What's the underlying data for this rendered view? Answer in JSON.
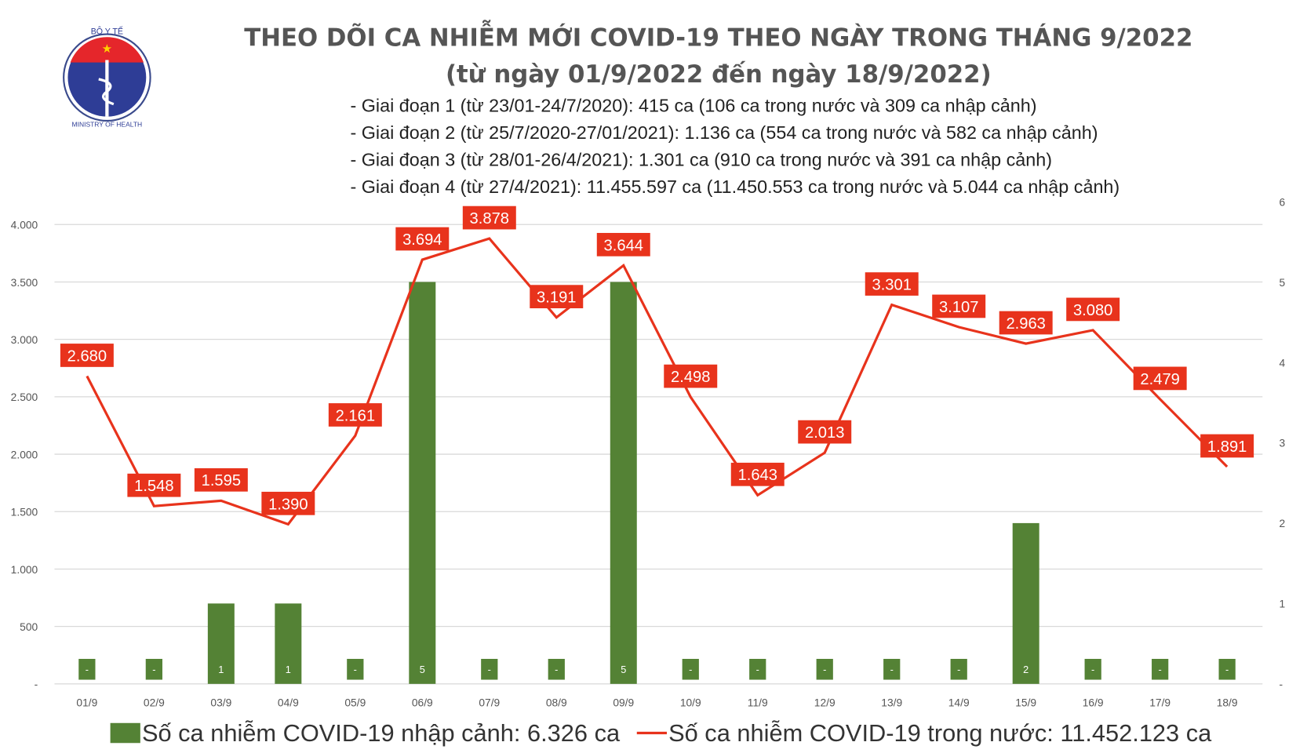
{
  "logo": {
    "top_text": "BỘ Y TẾ",
    "bottom_text": "MINISTRY OF HEALTH"
  },
  "title_line1": "THEO DÕI CA NHIỄM MỚI COVID-19 THEO NGÀY TRONG THÁNG 9/2022",
  "title_line2": "(từ ngày 01/9/2022 đến ngày 18/9/2022)",
  "notes": [
    "- Giai đoạn 1 (từ 23/01-24/7/2020): 415 ca (106 ca trong nước và 309 ca nhập cảnh)",
    "- Giai đoạn 2 (từ 25/7/2020-27/01/2021): 1.136 ca (554 ca trong nước và 582 ca nhập cảnh)",
    "- Giai đoạn 3 (từ 28/01-26/4/2021): 1.301 ca (910 ca trong nước và 391 ca nhập cảnh)",
    "- Giai đoạn 4 (từ 27/4/2021): 11.455.597 ca (11.450.553 ca trong nước và 5.044 ca nhập cảnh)"
  ],
  "chart_data": {
    "type": "bar+line",
    "categories": [
      "01/9",
      "02/9",
      "03/9",
      "04/9",
      "05/9",
      "06/9",
      "07/9",
      "08/9",
      "09/9",
      "10/9",
      "11/9",
      "12/9",
      "13/9",
      "14/9",
      "15/9",
      "16/9",
      "17/9",
      "18/9"
    ],
    "series": [
      {
        "name": "Số ca nhiễm COVID-19 nhập cảnh: 6.326 ca",
        "type": "bar",
        "axis": "right",
        "color": "#548235",
        "values": [
          0,
          0,
          1,
          1,
          0,
          5,
          0,
          0,
          5,
          0,
          0,
          0,
          0,
          0,
          2,
          0,
          0,
          0
        ],
        "labels": [
          "-",
          "-",
          "1",
          "1",
          "-",
          "5",
          "-",
          "-",
          "5",
          "-",
          "-",
          "-",
          "-",
          "-",
          "2",
          "-",
          "-",
          "-"
        ]
      },
      {
        "name": "Số ca nhiễm COVID-19 trong nước: 11.452.123 ca",
        "type": "line",
        "axis": "left",
        "color": "#e8331c",
        "values": [
          2680,
          1548,
          1595,
          1390,
          2161,
          3694,
          3878,
          3191,
          3644,
          2498,
          1643,
          2013,
          3301,
          3107,
          2963,
          3080,
          2479,
          1891
        ],
        "labels": [
          "2.680",
          "1.548",
          "1.595",
          "1.390",
          "2.161",
          "3.694",
          "3.878",
          "3.191",
          "3.644",
          "2.498",
          "1.643",
          "2.013",
          "3.301",
          "3.107",
          "2.963",
          "3.080",
          "2.479",
          "1.891"
        ]
      }
    ],
    "left_axis": {
      "ylim": [
        0,
        4200
      ],
      "ticks": [
        "-",
        "500",
        "1.000",
        "1.500",
        "2.000",
        "2.500",
        "3.000",
        "3.500",
        "4.000"
      ]
    },
    "right_axis": {
      "ylim": [
        0,
        6
      ],
      "ticks": [
        "-",
        "1",
        "2",
        "3",
        "4",
        "5",
        "6"
      ]
    },
    "grid": true,
    "legend_position": "bottom"
  }
}
